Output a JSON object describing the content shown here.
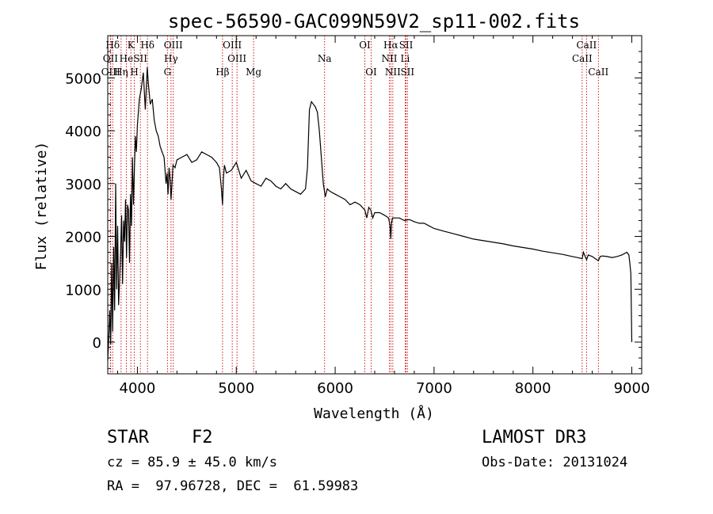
{
  "chart_data": {
    "type": "line",
    "title": "spec-56590-GAC099N59V2_sp11-002.fits",
    "xlabel": "Wavelength (Å)",
    "ylabel": "Flux (relative)",
    "xlim": [
      3700,
      9100
    ],
    "ylim": [
      -600,
      5800
    ],
    "xticks": [
      4000,
      5000,
      6000,
      7000,
      8000,
      9000
    ],
    "yticks": [
      0,
      1000,
      2000,
      3000,
      4000,
      5000
    ],
    "series": [
      {
        "name": "flux",
        "x": [
          3700,
          3710,
          3720,
          3730,
          3740,
          3750,
          3760,
          3770,
          3780,
          3790,
          3800,
          3810,
          3820,
          3830,
          3840,
          3850,
          3860,
          3870,
          3880,
          3890,
          3900,
          3910,
          3920,
          3930,
          3940,
          3950,
          3960,
          3970,
          3980,
          3990,
          4000,
          4020,
          4040,
          4060,
          4080,
          4100,
          4110,
          4130,
          4150,
          4170,
          4190,
          4210,
          4230,
          4250,
          4270,
          4290,
          4300,
          4310,
          4320,
          4330,
          4340,
          4360,
          4380,
          4400,
          4450,
          4500,
          4550,
          4600,
          4650,
          4700,
          4750,
          4800,
          4830,
          4850,
          4861,
          4870,
          4880,
          4900,
          4950,
          5000,
          5050,
          5100,
          5150,
          5200,
          5250,
          5300,
          5350,
          5400,
          5450,
          5500,
          5550,
          5600,
          5650,
          5700,
          5720,
          5740,
          5760,
          5780,
          5800,
          5820,
          5840,
          5860,
          5880,
          5900,
          5920,
          5950,
          6000,
          6050,
          6100,
          6150,
          6200,
          6250,
          6300,
          6320,
          6340,
          6360,
          6380,
          6400,
          6450,
          6500,
          6540,
          6555,
          6563,
          6570,
          6580,
          6600,
          6650,
          6700,
          6750,
          6800,
          6850,
          6900,
          6950,
          7000,
          7100,
          7200,
          7300,
          7400,
          7500,
          7600,
          7700,
          7800,
          7900,
          8000,
          8100,
          8200,
          8300,
          8400,
          8450,
          8498,
          8510,
          8542,
          8560,
          8600,
          8662,
          8680,
          8700,
          8750,
          8800,
          8850,
          8900,
          8950,
          8970,
          8980,
          8990,
          9000
        ],
        "values": [
          -350,
          50,
          600,
          -50,
          1500,
          200,
          1800,
          600,
          3000,
          1000,
          2200,
          700,
          1200,
          1700,
          2400,
          1100,
          2300,
          1900,
          2700,
          1600,
          2600,
          2500,
          1500,
          2800,
          2200,
          3500,
          2600,
          3300,
          3900,
          3600,
          4100,
          4600,
          4800,
          5100,
          4400,
          5200,
          4900,
          4500,
          4600,
          4200,
          4000,
          3900,
          3700,
          3600,
          3500,
          3000,
          3200,
          2800,
          3300,
          3100,
          2700,
          3350,
          3300,
          3450,
          3500,
          3550,
          3400,
          3450,
          3600,
          3550,
          3500,
          3400,
          3300,
          2900,
          2600,
          3100,
          3350,
          3200,
          3250,
          3400,
          3100,
          3250,
          3050,
          3000,
          2950,
          3100,
          3050,
          2950,
          2900,
          3000,
          2900,
          2850,
          2800,
          2900,
          3300,
          4400,
          4550,
          4500,
          4450,
          4350,
          4000,
          3500,
          3000,
          2750,
          2900,
          2850,
          2800,
          2750,
          2700,
          2600,
          2650,
          2600,
          2500,
          2350,
          2550,
          2500,
          2350,
          2450,
          2450,
          2400,
          2350,
          2200,
          1950,
          2250,
          2350,
          2350,
          2350,
          2300,
          2320,
          2280,
          2250,
          2250,
          2200,
          2150,
          2100,
          2050,
          2000,
          1950,
          1920,
          1890,
          1860,
          1820,
          1790,
          1760,
          1720,
          1690,
          1660,
          1620,
          1600,
          1580,
          1700,
          1560,
          1650,
          1620,
          1540,
          1620,
          1630,
          1620,
          1600,
          1620,
          1650,
          1700,
          1650,
          1500,
          1300,
          0
        ]
      }
    ],
    "lines": [
      {
        "name": "H-delta",
        "x": 3750,
        "label": "Hδ",
        "row": 1
      },
      {
        "name": "OII",
        "x": 3727,
        "label": "OII",
        "row": 2
      },
      {
        "name": "OIII-3726",
        "x": 3730,
        "label": "OIII",
        "row": 3
      },
      {
        "name": "H-eta",
        "x": 3835,
        "label": "Hη",
        "row": 3
      },
      {
        "name": "K",
        "x": 3934,
        "label": "K",
        "row": 1
      },
      {
        "name": "He",
        "x": 3888,
        "label": "He",
        "row": 2
      },
      {
        "name": "SII-4068",
        "x": 4030,
        "label": "SII",
        "row": 2
      },
      {
        "name": "H",
        "x": 3969,
        "label": "H",
        "row": 3
      },
      {
        "name": "H-delta-2",
        "x": 4102,
        "label": "Hδ",
        "row": 1
      },
      {
        "name": "OIII-4363",
        "x": 4363,
        "label": "OIII",
        "row": 1
      },
      {
        "name": "H-gamma",
        "x": 4340,
        "label": "Hγ",
        "row": 2
      },
      {
        "name": "G",
        "x": 4304,
        "label": "G",
        "row": 3
      },
      {
        "name": "OIII-4959",
        "x": 4959,
        "label": "OIII",
        "row": 1
      },
      {
        "name": "OIII-5007",
        "x": 5007,
        "label": "OIII",
        "row": 2
      },
      {
        "name": "H-beta",
        "x": 4861,
        "label": "Hβ",
        "row": 3
      },
      {
        "name": "Mg",
        "x": 5175,
        "label": "Mg",
        "row": 3
      },
      {
        "name": "Na",
        "x": 5893,
        "label": "Na",
        "row": 2
      },
      {
        "name": "OI-6300",
        "x": 6300,
        "label": "OI",
        "row": 1
      },
      {
        "name": "OI-6364",
        "x": 6364,
        "label": "OI",
        "row": 3
      },
      {
        "name": "H-alpha",
        "x": 6563,
        "label": "Hα",
        "row": 1
      },
      {
        "name": "NII-6548",
        "x": 6548,
        "label": "NII",
        "row": 2
      },
      {
        "name": "NII-6583",
        "x": 6583,
        "label": "NII",
        "row": 3
      },
      {
        "name": "SII-6717",
        "x": 6717,
        "label": "SII",
        "row": 1
      },
      {
        "name": "Li",
        "x": 6708,
        "label": "Li",
        "row": 2
      },
      {
        "name": "SII-6731",
        "x": 6731,
        "label": "SII",
        "row": 3
      },
      {
        "name": "CaII-8498",
        "x": 8498,
        "label": "CaII",
        "row": 2
      },
      {
        "name": "CaII-8542",
        "x": 8542,
        "label": "CaII",
        "row": 1
      },
      {
        "name": "CaII-8662",
        "x": 8662,
        "label": "CaII",
        "row": 3
      }
    ]
  },
  "info": {
    "class_label": "STAR",
    "subclass": "F2",
    "survey": "LAMOST DR3",
    "cz": "cz = 85.9 ± 45.0 km/s",
    "obs_date": "Obs-Date: 20131024",
    "coords": "RA =  97.96728, DEC =  61.59983"
  },
  "colors": {
    "line_marker": "#cc0000",
    "spectrum": "#000000"
  }
}
